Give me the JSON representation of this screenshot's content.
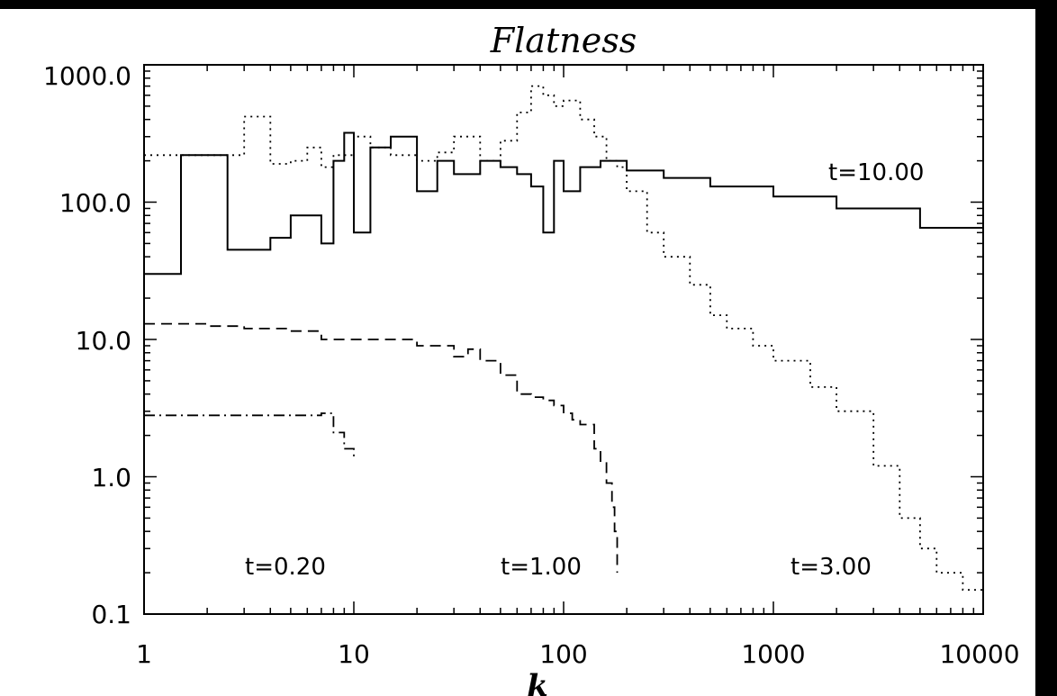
{
  "chart_data": {
    "type": "line",
    "title": "Flatness",
    "xlabel": "k",
    "ylabel": "",
    "xscale": "log",
    "yscale": "log",
    "xlim": [
      1,
      10000
    ],
    "ylim": [
      0.1,
      1000
    ],
    "grid": false,
    "x_ticks": [
      "1",
      "10",
      "100",
      "1000",
      "10000"
    ],
    "y_ticks": [
      "0.1",
      "1.0",
      "10.0",
      "100.0",
      "1000.0"
    ],
    "series": [
      {
        "name": "t=0.20",
        "style": "dash-dot",
        "x": [
          1,
          2,
          3,
          4,
          5,
          6,
          7,
          8,
          9,
          10
        ],
        "y": [
          2.8,
          2.8,
          2.8,
          2.8,
          2.8,
          2.8,
          2.9,
          2.1,
          1.6,
          1.4
        ]
      },
      {
        "name": "t=1.00",
        "style": "dashed",
        "x": [
          1,
          2,
          3,
          5,
          7,
          10,
          15,
          20,
          30,
          35,
          40,
          50,
          60,
          70,
          80,
          90,
          100,
          110,
          120,
          140,
          150,
          160,
          170,
          175,
          180
        ],
        "y": [
          13,
          12.5,
          12,
          11.5,
          10,
          10,
          10,
          9,
          7.5,
          8.5,
          7,
          5.5,
          4,
          3.8,
          3.6,
          3.3,
          2.9,
          2.6,
          2.4,
          1.6,
          1.3,
          0.9,
          0.6,
          0.4,
          0.2
        ]
      },
      {
        "name": "t=3.00",
        "style": "dotted",
        "x": [
          1,
          2,
          3,
          4,
          5,
          6,
          7,
          8,
          10,
          12,
          15,
          20,
          25,
          30,
          40,
          50,
          60,
          70,
          80,
          90,
          100,
          120,
          140,
          160,
          180,
          200,
          250,
          300,
          400,
          500,
          600,
          800,
          1000,
          1500,
          2000,
          3000,
          4000,
          5000,
          6000,
          8000,
          10000
        ],
        "y": [
          220,
          220,
          420,
          190,
          200,
          250,
          180,
          220,
          300,
          250,
          220,
          200,
          230,
          300,
          200,
          280,
          450,
          700,
          600,
          500,
          550,
          400,
          300,
          200,
          180,
          120,
          60,
          40,
          25,
          15,
          12,
          9,
          7,
          4.5,
          3,
          1.2,
          0.5,
          0.3,
          0.2,
          0.15,
          0.1
        ]
      },
      {
        "name": "t=10.00",
        "style": "solid",
        "x": [
          1,
          1.5,
          2,
          2.5,
          3,
          4,
          5,
          6,
          7,
          8,
          9,
          10,
          12,
          15,
          20,
          25,
          30,
          40,
          50,
          60,
          70,
          80,
          90,
          100,
          120,
          150,
          200,
          300,
          500,
          1000,
          2000,
          5000,
          10000
        ],
        "y": [
          30,
          220,
          220,
          45,
          45,
          55,
          80,
          80,
          50,
          200,
          320,
          60,
          250,
          300,
          120,
          200,
          160,
          200,
          180,
          160,
          130,
          60,
          200,
          120,
          180,
          200,
          170,
          150,
          130,
          110,
          90,
          65,
          50
        ]
      }
    ],
    "annotations": [
      "t=10.00",
      "t=0.20",
      "t=1.00",
      "t=3.00"
    ]
  }
}
